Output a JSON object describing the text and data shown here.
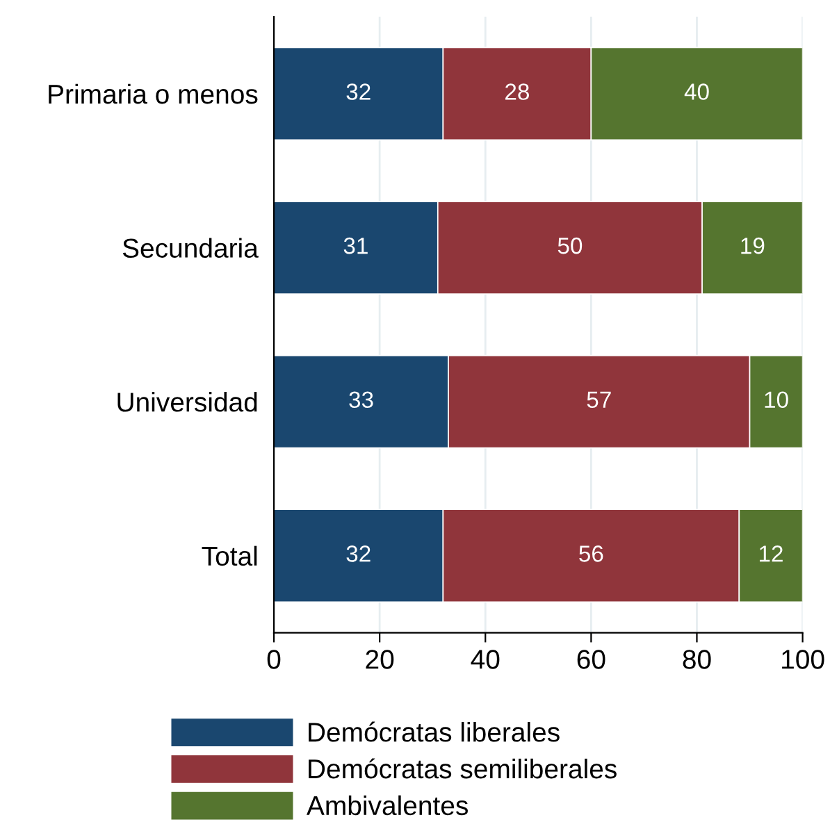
{
  "chart_data": {
    "type": "bar",
    "orientation": "horizontal",
    "stacked": true,
    "data_labels": true,
    "categories": [
      "Primaria o menos",
      "Secundaria",
      "Universidad",
      "Total"
    ],
    "series": [
      {
        "name": "Demócratas liberales",
        "color": "#1a476f",
        "values": [
          32,
          31,
          33,
          32
        ]
      },
      {
        "name": "Demócratas semiliberales",
        "color": "#90353b",
        "values": [
          28,
          50,
          57,
          56
        ]
      },
      {
        "name": "Ambivalentes",
        "color": "#55752f",
        "values": [
          40,
          19,
          10,
          12
        ]
      }
    ],
    "xlim": [
      0,
      100
    ],
    "xticks": [
      0,
      20,
      40,
      60,
      80,
      100
    ],
    "grid": "x",
    "legend": "bottom"
  }
}
